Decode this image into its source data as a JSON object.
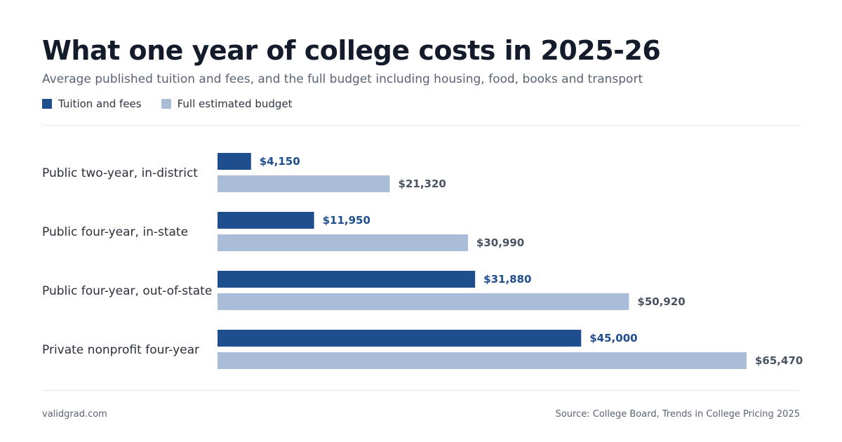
{
  "colors": {
    "tuition": "#1f4e8f",
    "budget": "#a9bdd8",
    "budget_label": "#4a5362"
  },
  "chart_data": {
    "type": "bar",
    "orientation": "horizontal",
    "title": "What one year of college costs in 2025-26",
    "subtitle": "Average published tuition and fees, and the full budget including housing, food, books and transport",
    "categories": [
      "Public two-year, in-district",
      "Public four-year, in-state",
      "Public four-year, out-of-state",
      "Private nonprofit four-year"
    ],
    "series": [
      {
        "name": "Tuition and fees",
        "values": [
          4150,
          11950,
          31880,
          45000
        ],
        "labels": [
          "$4,150",
          "$11,950",
          "$31,880",
          "$45,000"
        ]
      },
      {
        "name": "Full estimated budget",
        "values": [
          21320,
          30990,
          50920,
          65470
        ],
        "labels": [
          "$21,320",
          "$30,990",
          "$50,920",
          "$65,470"
        ]
      }
    ],
    "xlim": [
      0,
      65470
    ],
    "grid": false,
    "legend_position": "top-left"
  },
  "footer": {
    "site": "validgrad.com",
    "source": "Source: College Board, Trends in College Pricing 2025"
  }
}
